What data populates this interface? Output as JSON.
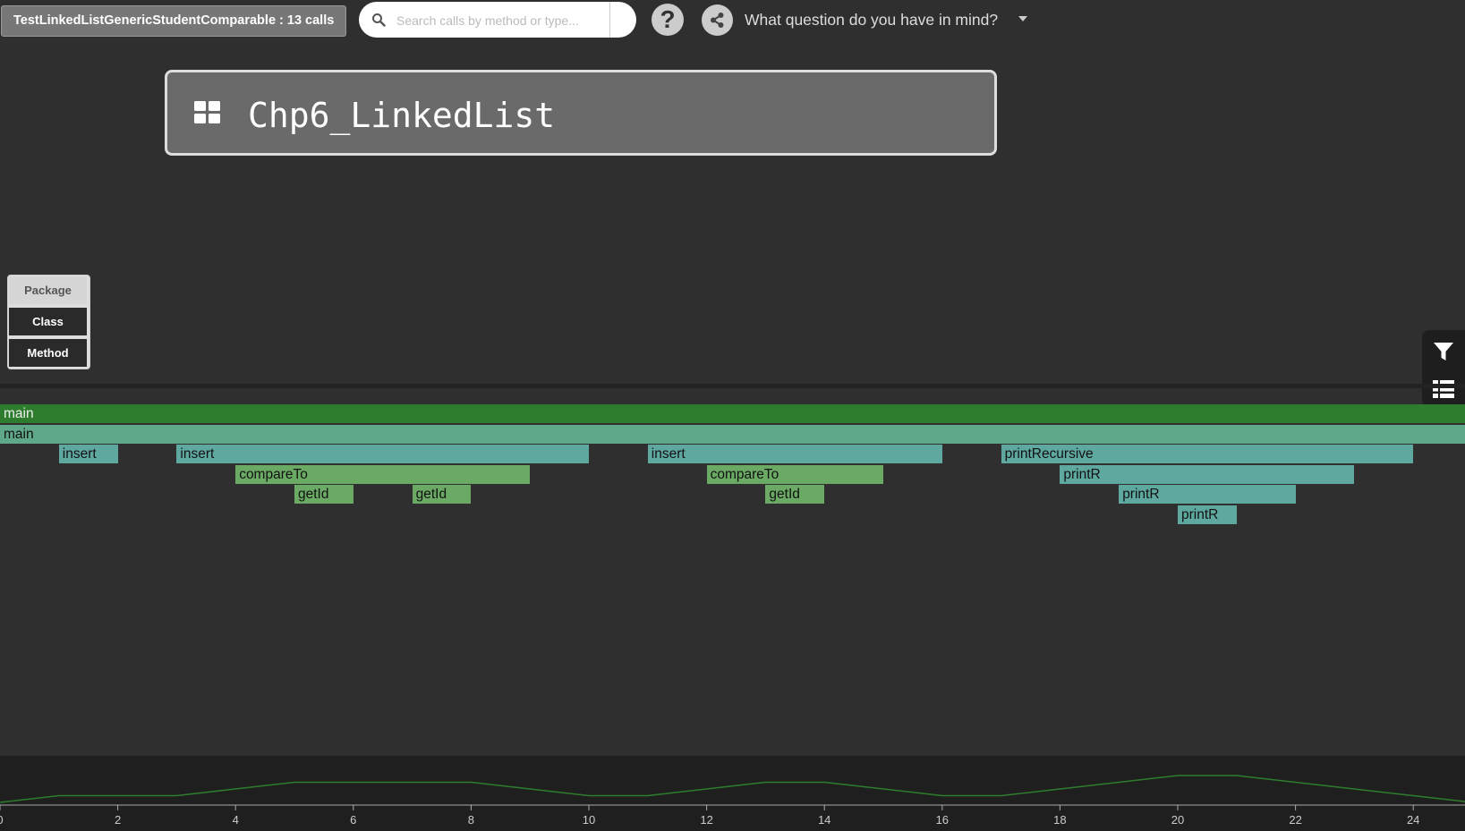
{
  "header": {
    "app_title": "TestLinkedListGenericStudentComparable : 13 calls",
    "search_placeholder": "Search calls by method or type...",
    "help_label": "?",
    "question_prompt": "What question do you have in mind?"
  },
  "package_card": {
    "name": "Chp6_LinkedList"
  },
  "levels": {
    "package": "Package",
    "class": "Class",
    "method": "Method",
    "active": "package"
  },
  "side_panel": {
    "icons": [
      "filter-icon",
      "table-list-icon"
    ]
  },
  "call_tree": {
    "time_range": [
      0,
      25
    ],
    "calls": [
      {
        "label": "main",
        "start": 0,
        "end": 25,
        "depth": 0,
        "color": "#2e7d2e"
      },
      {
        "label": "main",
        "start": 0,
        "end": 25,
        "depth": 1,
        "color": "#5fa88a"
      },
      {
        "label": "insert",
        "start": 1,
        "end": 2,
        "depth": 2,
        "color": "#5fa8a0"
      },
      {
        "label": "insert",
        "start": 3,
        "end": 10,
        "depth": 2,
        "color": "#5fa8a0"
      },
      {
        "label": "compareTo",
        "start": 4,
        "end": 9,
        "depth": 3,
        "color": "#6aaa64"
      },
      {
        "label": "getId",
        "start": 5,
        "end": 6,
        "depth": 4,
        "color": "#6aaa64"
      },
      {
        "label": "getId",
        "start": 7,
        "end": 8,
        "depth": 4,
        "color": "#6aaa64"
      },
      {
        "label": "insert",
        "start": 11,
        "end": 16,
        "depth": 2,
        "color": "#5fa8a0"
      },
      {
        "label": "compareTo",
        "start": 12,
        "end": 15,
        "depth": 3,
        "color": "#6aaa64"
      },
      {
        "label": "getId",
        "start": 13,
        "end": 14,
        "depth": 4,
        "color": "#6aaa64"
      },
      {
        "label": "printRecursive",
        "start": 17,
        "end": 24,
        "depth": 2,
        "color": "#5fa8a0"
      },
      {
        "label": "printR",
        "start": 18,
        "end": 23,
        "depth": 3,
        "color": "#5fa8a0"
      },
      {
        "label": "printR",
        "start": 19,
        "end": 22,
        "depth": 4,
        "color": "#5fa8a0"
      },
      {
        "label": "printR",
        "start": 20,
        "end": 21,
        "depth": 5,
        "color": "#5fa8a0"
      }
    ]
  },
  "chart_data": {
    "type": "line",
    "x": [
      0,
      1,
      3,
      5,
      8,
      10,
      11,
      13,
      14,
      16,
      17,
      20,
      21,
      25
    ],
    "y": [
      2,
      3,
      3,
      5,
      5,
      3,
      3,
      5,
      5,
      3,
      3,
      6,
      6,
      2
    ],
    "xticks": [
      "0",
      "2",
      "4",
      "6",
      "8",
      "10",
      "12",
      "14",
      "16",
      "18",
      "20",
      "22",
      "24"
    ],
    "xlim": [
      0,
      25
    ],
    "ylim": [
      2,
      6
    ],
    "line_color": "#2e7d2e"
  }
}
